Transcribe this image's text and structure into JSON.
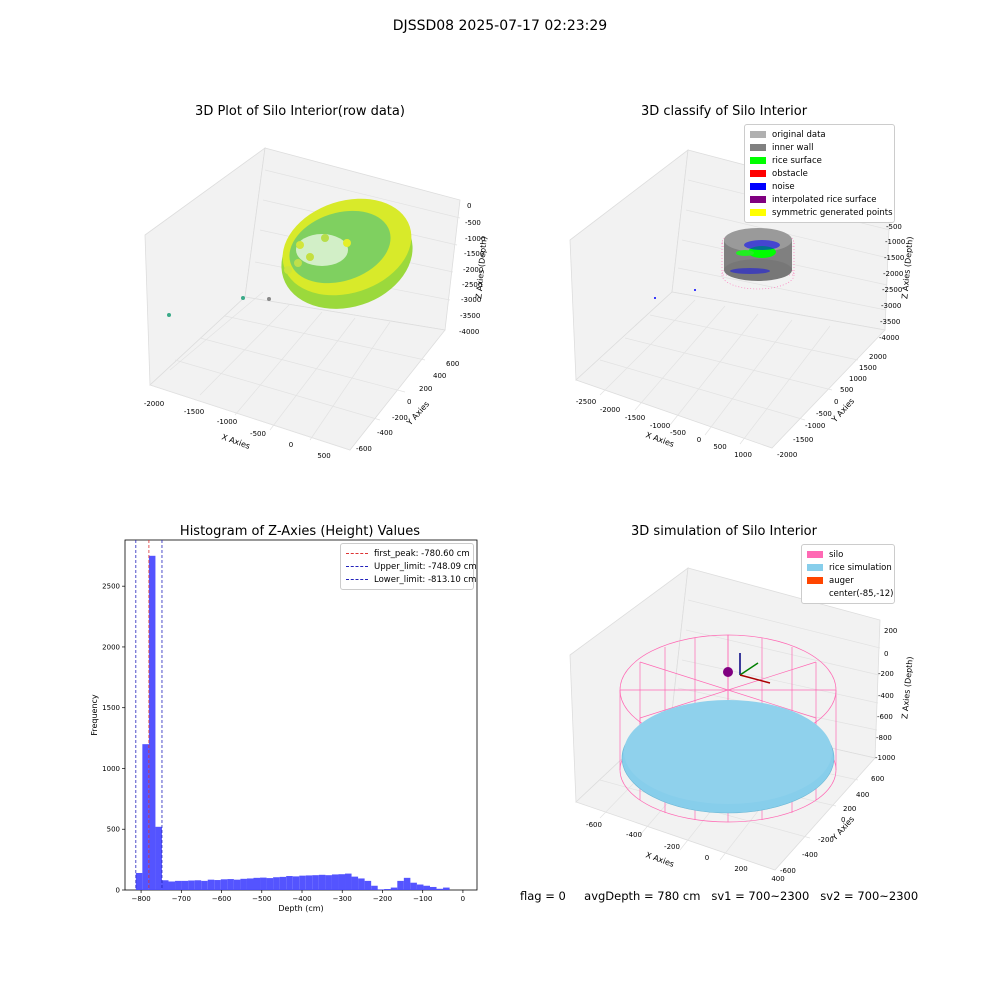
{
  "suptitle": "DJSSD08 2025-07-17 02:23:29",
  "footer": {
    "flag": "flag = 0",
    "avg_depth": "avgDepth = 780 cm",
    "sv1": "sv1 = 700~2300",
    "sv2": "sv2 = 700~2300"
  },
  "colors": {
    "hist_bar": "#4b4bff",
    "first_peak": "#dd3333",
    "limits": "#2222bb",
    "silo": "#ff69b4",
    "rice_sim": "#87ceeb",
    "auger": "#ff4500",
    "rice_surface": "#00ff00",
    "inner_wall": "#808080",
    "noise": "#0000ff"
  },
  "plots": {
    "raw": {
      "title": "3D Plot of Silo Interior(row data)",
      "xlabel": "X Axies",
      "ylabel": "Y Axies",
      "zlabel": "Z Axies (Depth)",
      "xticks": [
        "-2000",
        "-1500",
        "-1000",
        "-500",
        "0",
        "500"
      ],
      "yticks": [
        "-600",
        "-400",
        "-200",
        "0",
        "200",
        "400",
        "600"
      ],
      "zticks": [
        "0",
        "-500",
        "-1000",
        "-1500",
        "-2000",
        "-2500",
        "-3000",
        "-3500",
        "-4000"
      ]
    },
    "classify": {
      "title": "3D classify of Silo Interior",
      "xlabel": "X Axies",
      "ylabel": "Y Axies",
      "zlabel": "Z Axies (Depth)",
      "xticks": [
        "-2500",
        "-2000",
        "-1500",
        "-1000",
        "-500",
        "0",
        "500",
        "1000"
      ],
      "yticks": [
        "-2000",
        "-1500",
        "-1000",
        "-500",
        "0",
        "500",
        "1000",
        "1500",
        "2000"
      ],
      "zticks": [
        "-500",
        "-1000",
        "-1500",
        "-2000",
        "-2500",
        "-3000",
        "-3500",
        "-4000"
      ],
      "legend": [
        {
          "label": "original data",
          "color": "#b0b0b0"
        },
        {
          "label": "inner wall",
          "color": "#808080"
        },
        {
          "label": "rice surface",
          "color": "#00ff00"
        },
        {
          "label": "obstacle",
          "color": "#ff0000"
        },
        {
          "label": "noise",
          "color": "#0000ff"
        },
        {
          "label": "interpolated rice surface",
          "color": "#800080"
        },
        {
          "label": "symmetric generated points",
          "color": "#ffff00"
        }
      ]
    },
    "simulation": {
      "title": "3D simulation of Silo Interior",
      "xlabel": "X Axies",
      "ylabel": "Y Axies",
      "zlabel": "Z Axies (Depth)",
      "xticks": [
        "-600",
        "-400",
        "-200",
        "0",
        "200",
        "400"
      ],
      "yticks": [
        "-600",
        "-400",
        "-200",
        "0",
        "200",
        "400",
        "600"
      ],
      "zticks": [
        "200",
        "0",
        "-200",
        "-400",
        "-600",
        "-800",
        "-1000"
      ],
      "legend": [
        {
          "label": "silo",
          "color": "#ff69b4"
        },
        {
          "label": "rice simulation",
          "color": "#87ceeb"
        },
        {
          "label": "auger",
          "color": "#ff4500"
        },
        {
          "label": "center(-85,-12)",
          "color": ""
        }
      ]
    }
  },
  "chart_data": {
    "type": "bar",
    "title": "Histogram of Z-Axies (Height) Values",
    "xlabel": "Depth (cm)",
    "ylabel": "Frequency",
    "xlim": [
      -840,
      35
    ],
    "ylim": [
      0,
      2880
    ],
    "xticks": [
      -800,
      -700,
      -600,
      -500,
      -400,
      -300,
      -200,
      -100,
      0
    ],
    "yticks": [
      0,
      500,
      1000,
      1500,
      2000,
      2500
    ],
    "bin_width": 16.25,
    "bin_start": -813.1,
    "values": [
      140,
      1200,
      2750,
      520,
      80,
      70,
      75,
      75,
      78,
      80,
      75,
      85,
      82,
      88,
      90,
      85,
      92,
      95,
      100,
      102,
      98,
      105,
      108,
      115,
      112,
      118,
      120,
      122,
      125,
      122,
      128,
      130,
      135,
      110,
      95,
      75,
      35,
      5,
      8,
      20,
      75,
      100,
      60,
      45,
      35,
      25,
      10,
      20
    ],
    "vlines": [
      {
        "label": "first_peak: -780.60 cm",
        "x": -780.6,
        "color": "#dd3333"
      },
      {
        "label": "Upper_limit: -748.09 cm",
        "x": -748.09,
        "color": "#2222bb"
      },
      {
        "label": "Lower_limit: -813.10 cm",
        "x": -813.1,
        "color": "#2222bb"
      }
    ]
  }
}
